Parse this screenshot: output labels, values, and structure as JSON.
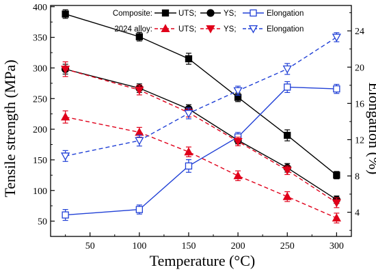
{
  "chart_data": {
    "type": "line",
    "xlabel": "Temperature (°C)",
    "ylabel": "Tensile strength (MPa)",
    "y2label": "Elongation (%)",
    "x": [
      25,
      100,
      150,
      200,
      250,
      300
    ],
    "xlim": [
      10,
      315
    ],
    "ylim": [
      25,
      402
    ],
    "y2lim": [
      1.333,
      26.8
    ],
    "xticks": [
      50,
      100,
      150,
      200,
      250,
      300
    ],
    "yticks": [
      50,
      100,
      150,
      200,
      250,
      300,
      350,
      400
    ],
    "y2ticks": [
      4,
      8,
      12,
      16,
      20,
      24
    ],
    "grid": false,
    "legend_position": "top-right",
    "legend_groups": [
      {
        "group": "Composite:",
        "color": "#000000"
      },
      {
        "group": "2024 alloy:",
        "color": "#e0001a"
      }
    ],
    "series": [
      {
        "name": "UTS",
        "group": "Composite:",
        "axis": "left",
        "color": "#000000",
        "dash": false,
        "marker": "square-filled",
        "values": [
          388,
          351,
          315,
          252,
          190,
          125
        ],
        "errors": [
          7,
          7,
          9,
          7,
          9,
          6
        ]
      },
      {
        "name": "YS",
        "group": "Composite:",
        "axis": "left",
        "color": "#000000",
        "dash": false,
        "marker": "circle-filled",
        "values": [
          298,
          267,
          233,
          182,
          137,
          85
        ],
        "errors": [
          8,
          7,
          7,
          6,
          7,
          6
        ]
      },
      {
        "name": "Elongation",
        "group": "Composite:",
        "axis": "right",
        "color": "#1f3fd6",
        "dash": false,
        "marker": "square-open",
        "values": [
          3.7,
          4.3,
          9.1,
          12.3,
          17.8,
          17.6
        ],
        "errors": [
          0.6,
          0.5,
          0.7,
          0.5,
          0.6,
          0.5
        ]
      },
      {
        "name": "UTS",
        "group": "2024 alloy:",
        "axis": "left",
        "color": "#e0001a",
        "dash": true,
        "marker": "triangle-up-filled",
        "values": [
          220,
          195,
          163,
          124,
          90,
          55
        ],
        "errors": [
          10,
          8,
          8,
          8,
          8,
          8
        ]
      },
      {
        "name": "YS",
        "group": "2024 alloy:",
        "axis": "left",
        "color": "#e0001a",
        "dash": true,
        "marker": "triangle-down-filled",
        "values": [
          298,
          264,
          227,
          180,
          133,
          80
        ],
        "errors": [
          12,
          8,
          7,
          7,
          7,
          8
        ]
      },
      {
        "name": "Elongation",
        "group": "2024 alloy:",
        "axis": "right",
        "color": "#1f3fd6",
        "dash": true,
        "marker": "triangle-down-open",
        "values": [
          10.2,
          11.9,
          14.9,
          17.4,
          19.8,
          23.3
        ],
        "errors": [
          0.6,
          0.6,
          0.6,
          0.5,
          0.6,
          0.5
        ]
      }
    ]
  }
}
